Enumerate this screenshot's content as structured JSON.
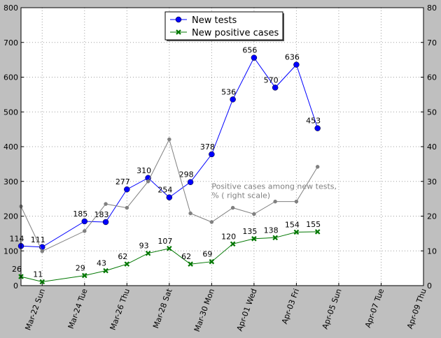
{
  "chart_data": {
    "type": "line",
    "x_dates": [
      "2020-03-21",
      "2020-03-22",
      "2020-03-24",
      "2020-03-25",
      "2020-03-26",
      "2020-03-27",
      "2020-03-28",
      "2020-03-29",
      "2020-03-30",
      "2020-03-31",
      "2020-04-01",
      "2020-04-02",
      "2020-04-03",
      "2020-04-04"
    ],
    "xlim": [
      "2020-03-21",
      "2020-04-09"
    ],
    "x_ticks": [
      {
        "date": "2020-03-22",
        "label": "Mar-22 Sun"
      },
      {
        "date": "2020-03-24",
        "label": "Mar-24 Tue"
      },
      {
        "date": "2020-03-26",
        "label": "Mar-26 Thu"
      },
      {
        "date": "2020-03-28",
        "label": "Mar-28 Sat"
      },
      {
        "date": "2020-03-30",
        "label": "Mar-30 Mon"
      },
      {
        "date": "2020-04-01",
        "label": "Apr-01 Wed"
      },
      {
        "date": "2020-04-03",
        "label": "Apr-03 Fri"
      },
      {
        "date": "2020-04-05",
        "label": "Apr-05 Sun"
      },
      {
        "date": "2020-04-07",
        "label": "Apr-07 Tue"
      },
      {
        "date": "2020-04-09",
        "label": "Apr-09 Thu"
      }
    ],
    "y_left": {
      "lim": [
        0,
        800
      ],
      "ticks": [
        0,
        100,
        200,
        300,
        400,
        500,
        600,
        700,
        800
      ]
    },
    "y_right": {
      "lim": [
        0,
        80
      ],
      "ticks": [
        0,
        10,
        20,
        30,
        40,
        50,
        60,
        70,
        80
      ]
    },
    "grid": true,
    "legend_position": "top-center",
    "series": [
      {
        "name": "New tests",
        "axis": "left",
        "color": "#0000ff",
        "marker": "circle",
        "dates": [
          "2020-03-21",
          "2020-03-22",
          "2020-03-24",
          "2020-03-25",
          "2020-03-26",
          "2020-03-27",
          "2020-03-28",
          "2020-03-29",
          "2020-03-30",
          "2020-03-31",
          "2020-04-01",
          "2020-04-02",
          "2020-04-03",
          "2020-04-04"
        ],
        "values": [
          114,
          111,
          185,
          183,
          277,
          310,
          254,
          298,
          378,
          536,
          656,
          570,
          636,
          453
        ],
        "labels": [
          "114",
          "111",
          "185",
          "183",
          "277",
          "310",
          "254",
          "298",
          "378",
          "536",
          "656",
          "570",
          "636",
          "453"
        ]
      },
      {
        "name": "New positive cases",
        "axis": "left",
        "color": "#007700",
        "marker": "x",
        "dates": [
          "2020-03-21",
          "2020-03-22",
          "2020-03-24",
          "2020-03-25",
          "2020-03-26",
          "2020-03-27",
          "2020-03-28",
          "2020-03-29",
          "2020-03-30",
          "2020-03-31",
          "2020-04-01",
          "2020-04-02",
          "2020-04-03",
          "2020-04-04"
        ],
        "values": [
          26,
          11,
          29,
          43,
          62,
          93,
          107,
          62,
          69,
          120,
          135,
          138,
          154,
          155
        ],
        "labels": [
          "26",
          "11",
          "29",
          "43",
          "62",
          "93",
          "107",
          "62",
          "69",
          "120",
          "135",
          "138",
          "154",
          "155"
        ]
      },
      {
        "axis": "right",
        "color": "#808080",
        "marker": "circle",
        "dates": [
          "2020-03-21",
          "2020-03-22",
          "2020-03-24",
          "2020-03-25",
          "2020-03-26",
          "2020-03-27",
          "2020-03-28",
          "2020-03-29",
          "2020-03-30",
          "2020-03-31",
          "2020-04-01",
          "2020-04-02",
          "2020-04-03",
          "2020-04-04"
        ],
        "values": [
          22.8,
          9.9,
          15.7,
          23.5,
          22.4,
          30.0,
          42.1,
          20.8,
          18.3,
          22.4,
          20.6,
          24.2,
          24.2,
          34.2
        ]
      }
    ],
    "annotation": {
      "text_lines": [
        "Positive cases among new tests,",
        "% ( right scale)"
      ],
      "date": "2020-03-30",
      "value_left": 278,
      "color": "#808080"
    }
  }
}
